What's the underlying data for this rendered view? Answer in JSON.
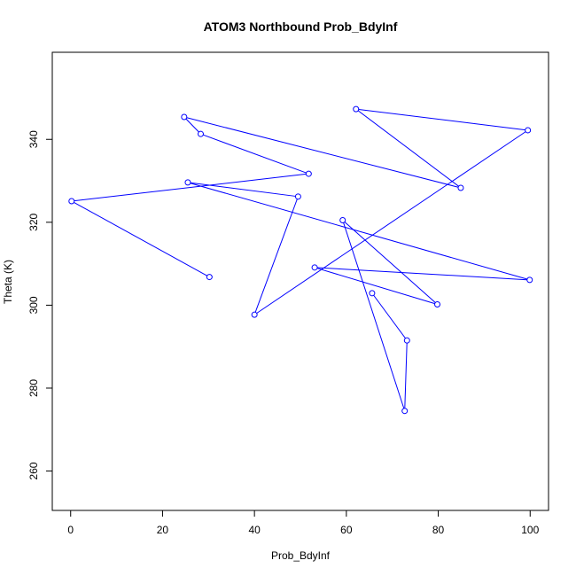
{
  "chart_data": {
    "type": "line",
    "title": "ATOM3 Northbound Prob_BdyInf",
    "xlabel": "Prob_BdyInf",
    "ylabel": "Theta (K)",
    "xlim": [
      -4,
      104
    ],
    "ylim": [
      250.5,
      361
    ],
    "x_ticks": [
      0,
      20,
      40,
      60,
      80,
      100
    ],
    "y_ticks": [
      260,
      280,
      300,
      320,
      340
    ],
    "series": [
      {
        "marker": "open-circle",
        "color": "#0000ff",
        "points": [
          {
            "x": 30.2,
            "y": 306.8
          },
          {
            "x": 0.2,
            "y": 325.1
          },
          {
            "x": 51.8,
            "y": 331.7
          },
          {
            "x": 28.3,
            "y": 341.3
          },
          {
            "x": 24.7,
            "y": 345.4
          },
          {
            "x": 84.9,
            "y": 328.3
          },
          {
            "x": 62.1,
            "y": 347.3
          },
          {
            "x": 99.5,
            "y": 342.2
          },
          {
            "x": 40.0,
            "y": 297.7
          },
          {
            "x": 49.5,
            "y": 326.2
          },
          {
            "x": 25.5,
            "y": 329.6
          },
          {
            "x": 99.9,
            "y": 306.1
          },
          {
            "x": 53.1,
            "y": 309.1
          },
          {
            "x": 79.8,
            "y": 300.2
          },
          {
            "x": 59.2,
            "y": 320.5
          },
          {
            "x": 72.7,
            "y": 274.5
          },
          {
            "x": 73.2,
            "y": 291.5
          },
          {
            "x": 65.6,
            "y": 302.9
          }
        ]
      }
    ],
    "grid": false,
    "legend": "none"
  }
}
